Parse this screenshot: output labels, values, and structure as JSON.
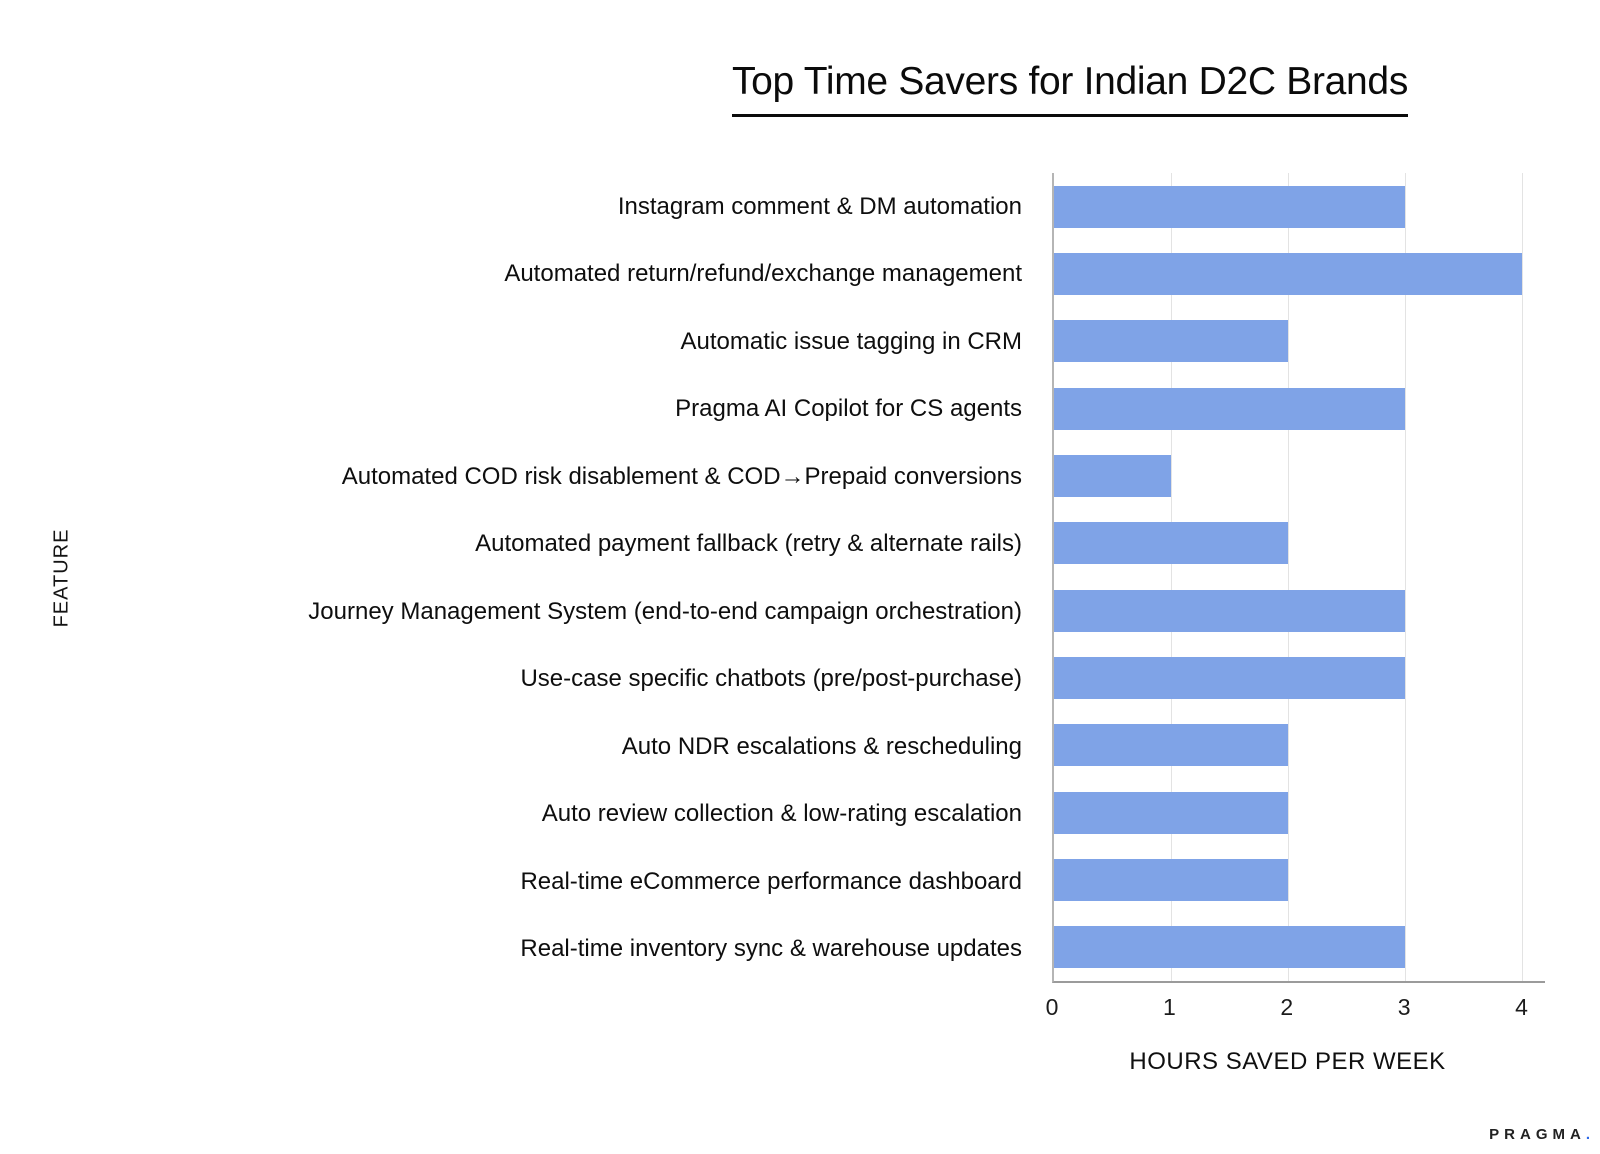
{
  "chart_data": {
    "type": "bar",
    "orientation": "horizontal",
    "title": "Top Time Savers for Indian D2C Brands",
    "xlabel": "HOURS SAVED PER WEEK",
    "ylabel": "FEATURE",
    "categories": [
      "Instagram comment & DM automation",
      "Automated return/refund/exchange management",
      "Automatic issue tagging in CRM",
      "Pragma AI Copilot for CS agents",
      "Automated COD risk disablement & COD→Prepaid conversions",
      "Automated payment fallback (retry & alternate rails)",
      "Journey Management System (end-to-end campaign orchestration)",
      "Use-case specific chatbots (pre/post-purchase)",
      "Auto NDR escalations & rescheduling",
      "Auto review collection & low-rating escalation",
      "Real-time eCommerce performance dashboard",
      "Real-time inventory sync & warehouse updates"
    ],
    "values": [
      3,
      4,
      2,
      3,
      1,
      2,
      3,
      3,
      2,
      2,
      2,
      3
    ],
    "x_ticks": [
      0,
      1,
      2,
      3,
      4
    ],
    "xlim": [
      0,
      4.2
    ],
    "grid": true,
    "legend": false,
    "bar_color": "#7fa3e7"
  },
  "footer": {
    "brand_text": "PRAGMA",
    "brand_dot": ".",
    "brand_dot_color": "#2d68e8"
  },
  "colors": {
    "background": "#ffffff",
    "gridline": "#e3e3e3",
    "axis_line": "#9b9b9b",
    "text": "#111111"
  }
}
